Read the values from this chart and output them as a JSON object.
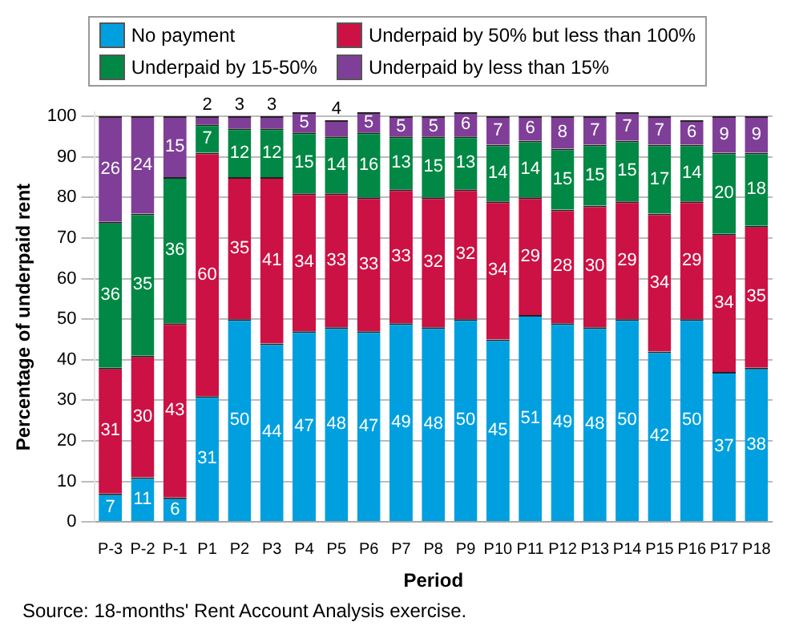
{
  "chart_data": {
    "type": "bar",
    "stacked": true,
    "ylabel": "Percentage of underpaid rent",
    "xlabel": "Period",
    "categories": [
      "P-3",
      "P-2",
      "P-1",
      "P1",
      "P2",
      "P3",
      "P4",
      "P5",
      "P6",
      "P7",
      "P8",
      "P9",
      "P10",
      "P11",
      "P12",
      "P13",
      "P14",
      "P15",
      "P16",
      "P17",
      "P18"
    ],
    "series": [
      {
        "name": "No payment",
        "color": "#00a0e0",
        "values": [
          7,
          11,
          6,
          31,
          50,
          44,
          47,
          48,
          47,
          49,
          48,
          50,
          45,
          51,
          49,
          48,
          50,
          42,
          50,
          37,
          38
        ]
      },
      {
        "name": "Underpaid by 50% but less than 100%",
        "color": "#cc1144",
        "values": [
          31,
          30,
          43,
          60,
          35,
          41,
          34,
          33,
          33,
          33,
          32,
          32,
          34,
          29,
          28,
          30,
          29,
          34,
          29,
          34,
          35
        ]
      },
      {
        "name": "Underpaid by 15-50%",
        "color": "#008844",
        "values": [
          36,
          35,
          36,
          7,
          12,
          12,
          15,
          14,
          16,
          13,
          15,
          13,
          14,
          14,
          15,
          15,
          15,
          17,
          14,
          20,
          18
        ]
      },
      {
        "name": "Underpaid by less than 15%",
        "color": "#7f3f98",
        "values": [
          26,
          24,
          15,
          2,
          3,
          3,
          5,
          4,
          5,
          5,
          5,
          6,
          7,
          6,
          8,
          7,
          7,
          7,
          6,
          9,
          9
        ]
      }
    ],
    "ylim": [
      0,
      101
    ],
    "yticks": [
      0,
      10,
      20,
      30,
      40,
      50,
      60,
      70,
      80,
      90,
      100
    ],
    "grid": "y",
    "legend": "top",
    "data_labels": true,
    "annotations": [
      "Source: 18-months' Rent Account Analysis exercise."
    ]
  }
}
